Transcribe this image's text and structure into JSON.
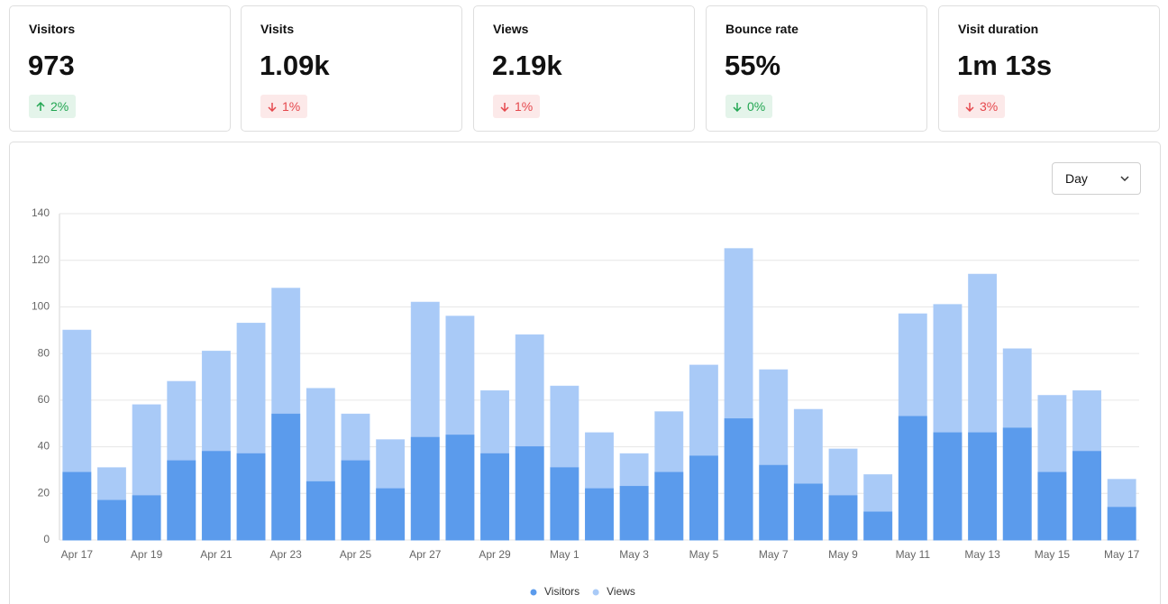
{
  "metrics": [
    {
      "label": "Visitors",
      "value": "973",
      "change": "2%",
      "arrow": "up",
      "color": "#22a652"
    },
    {
      "label": "Visits",
      "value": "1.09k",
      "change": "1%",
      "arrow": "down",
      "color": "#e5484d"
    },
    {
      "label": "Views",
      "value": "2.19k",
      "change": "1%",
      "arrow": "down",
      "color": "#e5484d"
    },
    {
      "label": "Bounce rate",
      "value": "55%",
      "change": "0%",
      "arrow": "down",
      "color": "#22a652"
    },
    {
      "label": "Visit duration",
      "value": "1m 13s",
      "change": "3%",
      "arrow": "down",
      "color": "#e5484d"
    }
  ],
  "period": "Day",
  "chart_data": {
    "type": "bar",
    "overlap": true,
    "categories": [
      "Apr 17",
      null,
      "Apr 19",
      null,
      "Apr 21",
      null,
      "Apr 23",
      null,
      "Apr 25",
      null,
      "Apr 27",
      null,
      "Apr 29",
      null,
      "May 1",
      null,
      "May 3",
      null,
      "May 5",
      null,
      "May 7",
      null,
      "May 9",
      null,
      "May 11",
      null,
      "May 13",
      null,
      "May 15",
      null,
      "May 17"
    ],
    "series": [
      {
        "name": "Views",
        "color": "#a9caf7",
        "values": [
          90,
          31,
          58,
          68,
          81,
          93,
          108,
          65,
          54,
          43,
          102,
          96,
          64,
          88,
          66,
          46,
          37,
          55,
          75,
          125,
          73,
          56,
          39,
          28,
          97,
          101,
          114,
          82,
          62,
          64,
          26
        ]
      },
      {
        "name": "Visitors",
        "color": "#5b9bec",
        "values": [
          29,
          17,
          19,
          34,
          38,
          37,
          54,
          25,
          34,
          22,
          44,
          45,
          37,
          40,
          31,
          22,
          23,
          29,
          36,
          52,
          32,
          24,
          19,
          12,
          53,
          46,
          46,
          48,
          29,
          38,
          14
        ]
      }
    ],
    "legend_order": [
      1,
      0
    ],
    "ylim": [
      0,
      140
    ],
    "yticks": [
      0,
      20,
      40,
      60,
      80,
      100,
      120,
      140
    ],
    "grid": true
  }
}
